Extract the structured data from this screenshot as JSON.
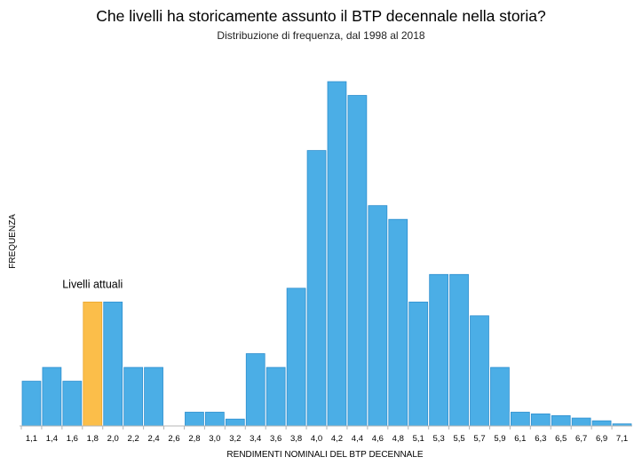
{
  "chart_data": {
    "type": "bar",
    "title": "Che livelli ha storicamente assunto il BTP decennale nella storia?",
    "subtitle": "Distribuzione di frequenza, dal 1998 al 2018",
    "xlabel": "RENDIMENTI NOMINALI DEL BTP DECENNALE",
    "ylabel": "FREQUENZA",
    "categories": [
      "1,1",
      "1,4",
      "1,6",
      "1,8",
      "2,0",
      "2,2",
      "2,4",
      "2,6",
      "2,8",
      "3,0",
      "3,2",
      "3,4",
      "3,6",
      "3,8",
      "4,0",
      "4,2",
      "4,4",
      "4,6",
      "4,8",
      "5,1",
      "5,3",
      "5,5",
      "5,7",
      "5,9",
      "6,1",
      "6,3",
      "6,5",
      "6,7",
      "6,9",
      "7,1"
    ],
    "values": [
      13,
      17,
      13,
      36,
      36,
      17,
      17,
      0,
      4,
      4,
      2,
      21,
      17,
      40,
      80,
      100,
      96,
      64,
      60,
      36,
      44,
      44,
      32,
      17,
      4,
      3.5,
      3,
      2.3,
      1.5,
      0.6
    ],
    "highlight_index": 3,
    "annotation": "Livelli attuali",
    "ylim": [
      0,
      100
    ],
    "grid": false,
    "colors": {
      "bar": "#4baee6",
      "bar_border": "#2e8fcf",
      "highlight": "#fbbe4a",
      "highlight_border": "#e9a52c",
      "axis": "#b5b5b5"
    }
  }
}
